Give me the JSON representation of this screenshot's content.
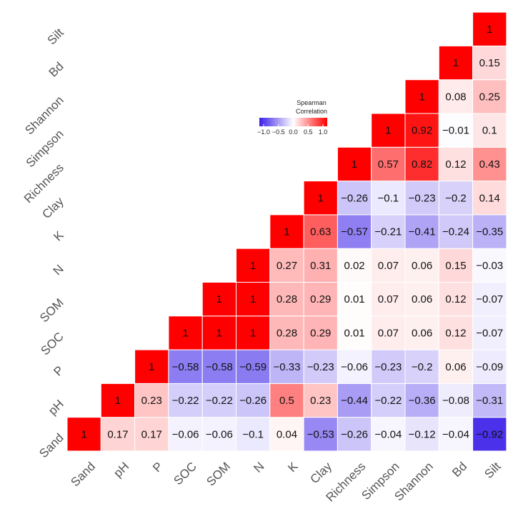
{
  "chart_data": {
    "type": "heatmap",
    "variables": [
      "Sand",
      "pH",
      "P",
      "SOC",
      "SOM",
      "N",
      "K",
      "Clay",
      "Richness",
      "Simpson",
      "Shannon",
      "Bd",
      "Silt"
    ],
    "matrix": [
      [
        1
      ],
      [
        0.17,
        1
      ],
      [
        0.17,
        0.23,
        1
      ],
      [
        -0.06,
        -0.22,
        -0.58,
        1
      ],
      [
        -0.06,
        -0.22,
        -0.58,
        1,
        1
      ],
      [
        -0.1,
        -0.26,
        -0.59,
        1,
        1,
        1
      ],
      [
        0.04,
        0.5,
        -0.33,
        0.28,
        0.28,
        0.27,
        1
      ],
      [
        -0.53,
        0.23,
        -0.23,
        0.29,
        0.29,
        0.31,
        0.63,
        1
      ],
      [
        -0.26,
        -0.44,
        -0.06,
        0.01,
        0.01,
        0.02,
        -0.57,
        -0.26,
        1
      ],
      [
        -0.04,
        -0.22,
        -0.23,
        0.07,
        0.07,
        0.07,
        -0.21,
        -0.1,
        0.57,
        1
      ],
      [
        -0.12,
        -0.36,
        -0.2,
        0.06,
        0.06,
        0.06,
        -0.41,
        -0.23,
        0.82,
        0.92,
        1
      ],
      [
        -0.04,
        -0.08,
        0.06,
        0.12,
        0.12,
        0.15,
        -0.24,
        -0.2,
        0.12,
        -0.01,
        0.08,
        1
      ],
      [
        -0.92,
        -0.31,
        -0.09,
        -0.07,
        -0.07,
        -0.03,
        -0.35,
        0.14,
        0.43,
        0.1,
        0.25,
        0.15,
        1
      ]
    ],
    "legend": {
      "title": "Spearman\nCorrelation",
      "min": -1.0,
      "max": 1.0,
      "ticks": [
        "-1.0",
        "-0.5",
        "0.0",
        "0.5",
        "1.0"
      ],
      "colors": {
        "low": "#3b1fe8",
        "mid": "#ffffff",
        "high": "#ff0000"
      },
      "placement": "top-center"
    },
    "grid": false
  }
}
